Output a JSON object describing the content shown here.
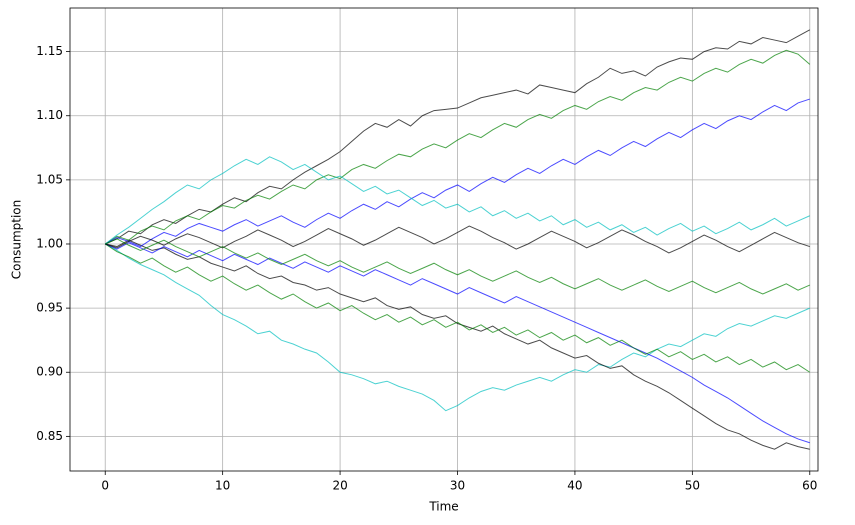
{
  "chart_data": {
    "type": "line",
    "xlabel": "Time",
    "ylabel": "Consumption",
    "x": [
      0,
      1,
      2,
      3,
      4,
      5,
      6,
      7,
      8,
      9,
      10,
      11,
      12,
      13,
      14,
      15,
      16,
      17,
      18,
      19,
      20,
      21,
      22,
      23,
      24,
      25,
      26,
      27,
      28,
      29,
      30,
      31,
      32,
      33,
      34,
      35,
      36,
      37,
      38,
      39,
      40,
      41,
      42,
      43,
      44,
      45,
      46,
      47,
      48,
      49,
      50,
      51,
      52,
      53,
      54,
      55,
      56,
      57,
      58,
      59,
      60
    ],
    "xlim": [
      -3,
      60.7
    ],
    "xticks": [
      0,
      10,
      20,
      30,
      40,
      50,
      60
    ],
    "ylim": [
      0.823,
      1.184
    ],
    "yticks": [
      0.85,
      {
        "value": 0.9,
        "label": "0.90"
      },
      0.95,
      {
        "value": 1,
        "label": "1.00"
      },
      1.05,
      {
        "value": 1.1,
        "label": "1.10"
      },
      1.15
    ],
    "grid": true,
    "series": [
      {
        "color": "#000000",
        "values": [
          1.0,
          1.004,
          1.01,
          1.008,
          1.015,
          1.019,
          1.016,
          1.022,
          1.027,
          1.025,
          1.031,
          1.036,
          1.033,
          1.04,
          1.045,
          1.043,
          1.05,
          1.056,
          1.061,
          1.066,
          1.072,
          1.08,
          1.088,
          1.094,
          1.091,
          1.097,
          1.092,
          1.1,
          1.104,
          1.105,
          1.106,
          1.11,
          1.114,
          1.116,
          1.118,
          1.12,
          1.117,
          1.124,
          1.122,
          1.12,
          1.118,
          1.125,
          1.13,
          1.137,
          1.133,
          1.135,
          1.131,
          1.138,
          1.142,
          1.145,
          1.144,
          1.15,
          1.153,
          1.152,
          1.158,
          1.156,
          1.161,
          1.159,
          1.157,
          1.162,
          1.167
        ]
      },
      {
        "color": "#00bfbf",
        "values": [
          1.0,
          0.995,
          0.989,
          0.984,
          0.98,
          0.976,
          0.97,
          0.965,
          0.96,
          0.952,
          0.945,
          0.941,
          0.936,
          0.93,
          0.932,
          0.925,
          0.922,
          0.918,
          0.915,
          0.908,
          0.9,
          0.898,
          0.895,
          0.891,
          0.893,
          0.889,
          0.886,
          0.883,
          0.878,
          0.87,
          0.874,
          0.88,
          0.885,
          0.888,
          0.886,
          0.89,
          0.893,
          0.896,
          0.893,
          0.898,
          0.902,
          0.9,
          0.906,
          0.904,
          0.91,
          0.915,
          0.912,
          0.918,
          0.922,
          0.92,
          0.925,
          0.93,
          0.928,
          0.934,
          0.938,
          0.936,
          0.94,
          0.944,
          0.942,
          0.946,
          0.95
        ]
      },
      {
        "color": "#000000",
        "values": [
          1.0,
          0.998,
          1.003,
          0.999,
          0.995,
          0.997,
          0.992,
          0.988,
          0.99,
          0.985,
          0.982,
          0.979,
          0.983,
          0.977,
          0.973,
          0.975,
          0.97,
          0.968,
          0.964,
          0.966,
          0.961,
          0.958,
          0.955,
          0.958,
          0.952,
          0.949,
          0.951,
          0.945,
          0.942,
          0.944,
          0.938,
          0.935,
          0.932,
          0.936,
          0.93,
          0.926,
          0.922,
          0.925,
          0.919,
          0.915,
          0.911,
          0.913,
          0.907,
          0.903,
          0.905,
          0.898,
          0.893,
          0.889,
          0.884,
          0.878,
          0.872,
          0.866,
          0.86,
          0.855,
          0.852,
          0.847,
          0.843,
          0.84,
          0.845,
          0.842,
          0.84
        ]
      },
      {
        "color": "#008000",
        "values": [
          1.0,
          1.006,
          1.003,
          1.01,
          1.014,
          1.011,
          1.018,
          1.022,
          1.019,
          1.025,
          1.03,
          1.028,
          1.034,
          1.038,
          1.035,
          1.041,
          1.046,
          1.043,
          1.05,
          1.054,
          1.051,
          1.058,
          1.062,
          1.059,
          1.065,
          1.07,
          1.068,
          1.074,
          1.078,
          1.075,
          1.081,
          1.086,
          1.083,
          1.089,
          1.094,
          1.091,
          1.097,
          1.101,
          1.098,
          1.104,
          1.108,
          1.105,
          1.111,
          1.115,
          1.112,
          1.118,
          1.122,
          1.12,
          1.126,
          1.13,
          1.127,
          1.133,
          1.137,
          1.134,
          1.14,
          1.144,
          1.141,
          1.147,
          1.151,
          1.148,
          1.14
        ]
      },
      {
        "color": "#0000ff",
        "values": [
          1.0,
          1.005,
          1.002,
          0.998,
          1.004,
          1.009,
          1.006,
          1.012,
          1.016,
          1.013,
          1.01,
          1.015,
          1.019,
          1.014,
          1.018,
          1.022,
          1.017,
          1.013,
          1.019,
          1.024,
          1.02,
          1.026,
          1.031,
          1.027,
          1.033,
          1.029,
          1.035,
          1.04,
          1.036,
          1.042,
          1.046,
          1.041,
          1.047,
          1.052,
          1.048,
          1.054,
          1.059,
          1.055,
          1.061,
          1.066,
          1.062,
          1.068,
          1.073,
          1.069,
          1.075,
          1.08,
          1.076,
          1.082,
          1.087,
          1.083,
          1.089,
          1.094,
          1.09,
          1.096,
          1.1,
          1.097,
          1.103,
          1.108,
          1.104,
          1.11,
          1.113
        ]
      },
      {
        "color": "#0000ff",
        "values": [
          1.0,
          0.996,
          1.001,
          0.997,
          0.993,
          0.998,
          0.994,
          0.99,
          0.995,
          0.991,
          0.987,
          0.992,
          0.988,
          0.984,
          0.989,
          0.985,
          0.981,
          0.986,
          0.982,
          0.978,
          0.983,
          0.979,
          0.975,
          0.98,
          0.976,
          0.972,
          0.968,
          0.973,
          0.969,
          0.965,
          0.961,
          0.966,
          0.962,
          0.958,
          0.954,
          0.959,
          0.955,
          0.951,
          0.947,
          0.943,
          0.939,
          0.935,
          0.931,
          0.927,
          0.923,
          0.919,
          0.915,
          0.911,
          0.906,
          0.901,
          0.896,
          0.89,
          0.885,
          0.88,
          0.874,
          0.868,
          0.862,
          0.857,
          0.852,
          0.848,
          0.845
        ]
      },
      {
        "color": "#00bfbf",
        "values": [
          1.0,
          1.007,
          1.013,
          1.02,
          1.027,
          1.033,
          1.04,
          1.046,
          1.043,
          1.05,
          1.055,
          1.061,
          1.066,
          1.062,
          1.068,
          1.064,
          1.058,
          1.062,
          1.056,
          1.05,
          1.053,
          1.047,
          1.041,
          1.045,
          1.039,
          1.042,
          1.036,
          1.03,
          1.034,
          1.028,
          1.031,
          1.025,
          1.029,
          1.022,
          1.026,
          1.02,
          1.024,
          1.018,
          1.022,
          1.015,
          1.019,
          1.013,
          1.017,
          1.011,
          1.015,
          1.009,
          1.013,
          1.007,
          1.012,
          1.016,
          1.01,
          1.014,
          1.008,
          1.012,
          1.017,
          1.011,
          1.015,
          1.02,
          1.014,
          1.018,
          1.022
        ]
      },
      {
        "color": "#008000",
        "values": [
          1.0,
          0.994,
          0.99,
          0.985,
          0.989,
          0.983,
          0.978,
          0.982,
          0.976,
          0.971,
          0.975,
          0.969,
          0.964,
          0.968,
          0.962,
          0.957,
          0.961,
          0.955,
          0.95,
          0.954,
          0.948,
          0.952,
          0.946,
          0.941,
          0.945,
          0.939,
          0.943,
          0.937,
          0.941,
          0.935,
          0.939,
          0.933,
          0.937,
          0.931,
          0.935,
          0.929,
          0.933,
          0.927,
          0.931,
          0.925,
          0.929,
          0.923,
          0.927,
          0.921,
          0.925,
          0.919,
          0.914,
          0.918,
          0.912,
          0.916,
          0.91,
          0.914,
          0.908,
          0.912,
          0.906,
          0.91,
          0.904,
          0.908,
          0.902,
          0.906,
          0.9
        ]
      },
      {
        "color": "#000000",
        "values": [
          1.0,
          0.997,
          1.002,
          1.006,
          1.003,
          0.999,
          1.004,
          1.008,
          1.005,
          1.001,
          0.997,
          1.002,
          1.006,
          1.011,
          1.007,
          1.003,
          0.998,
          1.002,
          1.007,
          1.012,
          1.008,
          1.004,
          0.999,
          1.003,
          1.008,
          1.013,
          1.009,
          1.005,
          1.0,
          1.004,
          1.009,
          1.014,
          1.01,
          1.005,
          1.001,
          0.996,
          1.0,
          1.005,
          1.01,
          1.006,
          1.002,
          0.997,
          1.001,
          1.006,
          1.011,
          1.007,
          1.002,
          0.998,
          0.993,
          0.997,
          1.002,
          1.007,
          1.003,
          0.998,
          0.994,
          0.999,
          1.004,
          1.009,
          1.005,
          1.001,
          0.998
        ]
      },
      {
        "color": "#008000",
        "values": [
          1.0,
          1.004,
          0.999,
          0.995,
          0.999,
          1.003,
          0.998,
          0.994,
          0.99,
          0.994,
          0.998,
          0.993,
          0.989,
          0.993,
          0.988,
          0.984,
          0.988,
          0.992,
          0.987,
          0.983,
          0.987,
          0.982,
          0.978,
          0.982,
          0.986,
          0.981,
          0.977,
          0.981,
          0.985,
          0.98,
          0.976,
          0.98,
          0.975,
          0.971,
          0.975,
          0.979,
          0.974,
          0.97,
          0.974,
          0.969,
          0.965,
          0.969,
          0.973,
          0.968,
          0.964,
          0.968,
          0.972,
          0.967,
          0.963,
          0.967,
          0.971,
          0.966,
          0.962,
          0.966,
          0.97,
          0.965,
          0.961,
          0.965,
          0.969,
          0.964,
          0.968
        ]
      }
    ]
  }
}
